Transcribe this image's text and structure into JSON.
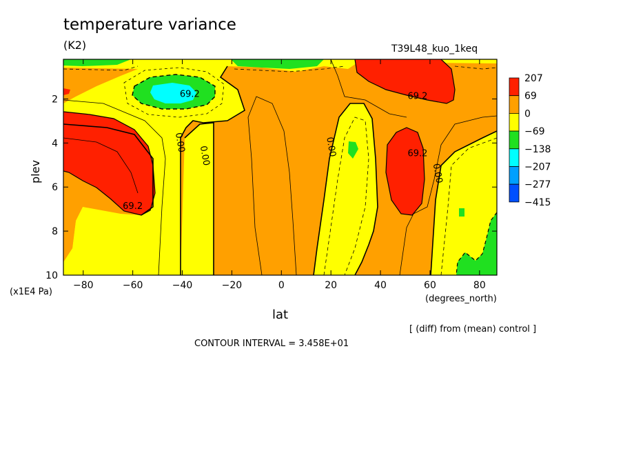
{
  "chart_data": {
    "type": "contour",
    "title": "temperature variance",
    "units": "(K2)",
    "run_label": "T39L48_kuo_1keq",
    "xlabel": "lat",
    "x_units": "(degrees_north)",
    "ylabel": "plev",
    "y_units": "(x1E4 Pa)",
    "xlim": [
      -88,
      87
    ],
    "ylim": [
      10,
      0.2
    ],
    "x_ticks": [
      -80,
      -60,
      -40,
      -20,
      0,
      20,
      40,
      60,
      80
    ],
    "y_ticks": [
      2,
      4,
      6,
      8,
      10
    ],
    "x_tick_labels": [
      "-80",
      "-60",
      "-40",
      "-20",
      "0",
      "20",
      "40",
      "60",
      "80"
    ],
    "y_tick_labels": [
      "2",
      "4",
      "6",
      "8",
      "10"
    ],
    "colorbar": {
      "labels": [
        "207",
        "69",
        "0",
        "-69",
        "-138",
        "-207",
        "-277",
        "-415"
      ],
      "colors": [
        "#ff2000",
        "#ffa000",
        "#ffff00",
        "#20e020",
        "#00ffff",
        "#00a0ff",
        "#0050ff"
      ]
    },
    "contour_labels": [
      {
        "text": "69.2",
        "lat": -60,
        "plev": 7.0
      },
      {
        "text": "0.00",
        "lat": -42,
        "plev": 4.0
      },
      {
        "text": "0.00",
        "lat": -32,
        "plev": 4.6
      },
      {
        "text": "69.2",
        "lat": -37,
        "plev": 1.9
      },
      {
        "text": "0.00",
        "lat": 19,
        "plev": 4.2
      },
      {
        "text": "69.2",
        "lat": 55,
        "plev": 4.6
      },
      {
        "text": "69.2",
        "lat": 55,
        "plev": 2.0
      },
      {
        "text": "0.00",
        "lat": 62,
        "plev": 5.4
      }
    ],
    "note": "[ (diff) from (mean) control ]",
    "contour_interval": "CONTOUR INTERVAL = 3.458E+01"
  }
}
